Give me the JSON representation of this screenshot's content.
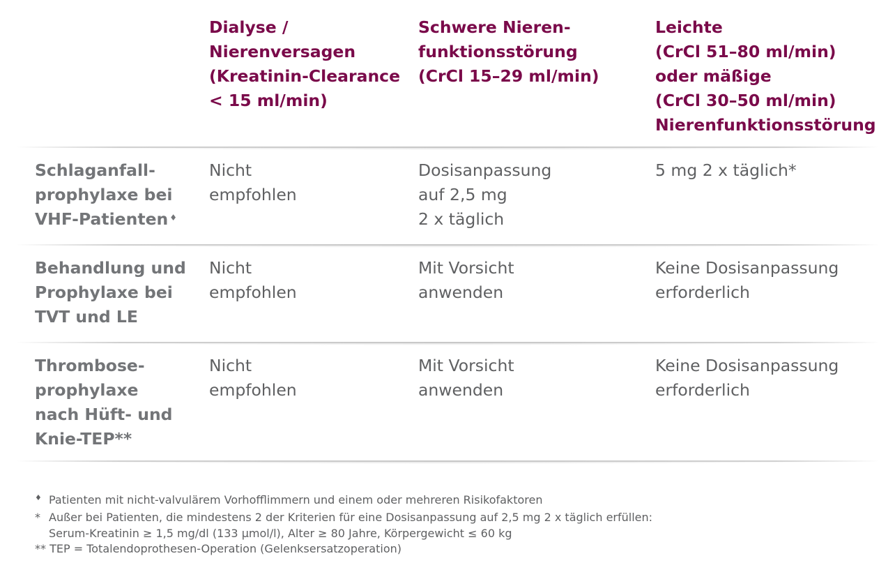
{
  "header": {
    "col1": [
      "Dialyse /",
      "Nierenversagen",
      "(Kreatinin-Clearance",
      "< 15 ml/min)"
    ],
    "col2": [
      "Schwere Nieren-",
      "funktionsstörung",
      "(CrCl 15–29 ml/min)"
    ],
    "col3": [
      "Leichte",
      "(CrCl 51–80 ml/min)",
      "oder mäßige",
      "(CrCl 30–50 ml/min)",
      "Nierenfunktionsstörung"
    ]
  },
  "rows": [
    {
      "label": [
        "Schlaganfall-",
        "prophylaxe bei",
        "VHF-Patienten"
      ],
      "label_mark": "♦",
      "c1": [
        "Nicht",
        "empfohlen"
      ],
      "c2": [
        "Dosisanpassung",
        "auf 2,5 mg",
        "2 x täglich"
      ],
      "c3": [
        "5 mg 2 x täglich*"
      ]
    },
    {
      "label": [
        "Behandlung und",
        "Prophylaxe bei",
        "TVT und LE"
      ],
      "c1": [
        "Nicht",
        "empfohlen"
      ],
      "c2": [
        "Mit Vorsicht",
        "anwenden"
      ],
      "c3": [
        "Keine Dosisanpassung",
        "erforderlich"
      ]
    },
    {
      "label": [
        "Thrombose-",
        "prophylaxe",
        "nach Hüft- und",
        "Knie-TEP**"
      ],
      "c1": [
        "Nicht",
        "empfohlen"
      ],
      "c2": [
        "Mit Vorsicht",
        "anwenden"
      ],
      "c3": [
        "Keine Dosisanpassung",
        "erforderlich"
      ]
    }
  ],
  "footnotes": [
    {
      "mark": "♦",
      "lines": [
        "Patienten mit nicht-valvulärem Vorhofflimmern und einem oder mehreren Risikofaktoren"
      ]
    },
    {
      "mark": "*",
      "lines": [
        "Außer bei Patienten, die mindestens 2 der Kriterien für eine Dosisanpassung auf 2,5 mg 2 x täglich erfüllen:",
        "Serum-Kreatinin ≥ 1,5 mg/dl (133 µmol/l), Alter ≥ 80 Jahre, Körpergewicht ≤ 60 kg"
      ]
    },
    {
      "mark": "**",
      "lines": [
        "TEP = Totalendoprothesen-Operation (Gelenksersatzoperation)"
      ]
    }
  ],
  "colors": {
    "header": "#7a0a4a",
    "label": "#737578",
    "text": "#5f6062"
  }
}
